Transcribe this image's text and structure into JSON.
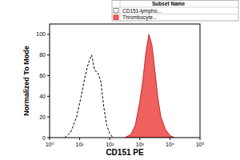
{
  "chart_data": {
    "type": "line",
    "x_label": "CD151 PE",
    "y_label": "Normalized To Mode",
    "legend_title": "Subset Name",
    "legend": "top-right",
    "log": "x",
    "grid": false,
    "xlim": [
      1,
      100000
    ],
    "xticks": [
      {
        "value": 1,
        "label": "10⁰"
      },
      {
        "value": 10,
        "label": "10¹"
      },
      {
        "value": 100,
        "label": "10²"
      },
      {
        "value": 1000,
        "label": "10³"
      },
      {
        "value": 10000,
        "label": "10⁴"
      },
      {
        "value": 100000,
        "label": "10⁵"
      }
    ],
    "ylim": [
      0,
      110
    ],
    "yticks": [
      0,
      20,
      40,
      60,
      80,
      100
    ],
    "series": [
      {
        "name": "CD151-lympho...",
        "color": "#000000",
        "line_style": "dashed",
        "type": "line",
        "x": [
          3.2,
          5.0,
          7.9,
          11.2,
          14.1,
          17.8,
          22.4,
          25.1,
          28.2,
          31.6,
          39.8,
          50.1,
          63.1,
          79.4,
          100,
          125.9
        ],
        "values": [
          0,
          5,
          20,
          40,
          55,
          68,
          77,
          80,
          72,
          65,
          63,
          55,
          30,
          12,
          4,
          0
        ]
      },
      {
        "name": "Thrombocyte...",
        "color": "#f0605f",
        "line_style": "solid",
        "type": "area",
        "x": [
          316,
          501,
          708,
          1000,
          1259,
          1585,
          1995,
          2512,
          3162,
          3981,
          5012,
          7079,
          10000,
          14125
        ],
        "values": [
          0,
          3,
          12,
          35,
          55,
          82,
          100,
          90,
          65,
          38,
          20,
          8,
          2,
          0
        ]
      }
    ]
  }
}
